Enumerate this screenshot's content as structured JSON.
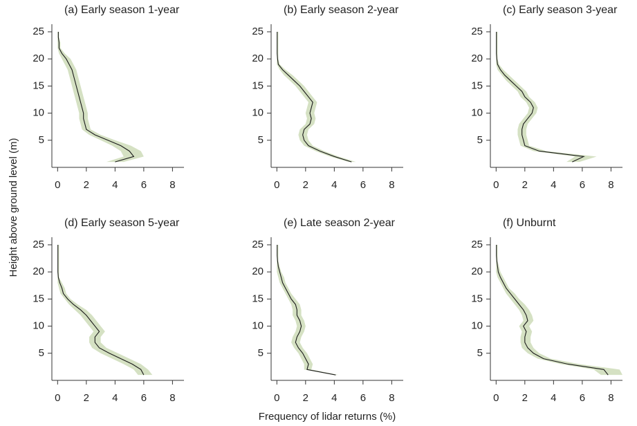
{
  "ylabel": "Height above ground level (m)",
  "xlabel": "Frequency of lidar returns (%)",
  "chart_data": [
    {
      "type": "line",
      "title": "(a)  Early season 1-year",
      "color": "#1a1a1a",
      "band_color": "#d5e1c3",
      "xlim": [
        -0.4,
        8.8
      ],
      "ylim": [
        0,
        26.4
      ],
      "xticks": [
        0,
        2,
        4,
        6,
        8
      ],
      "yticks": [
        5,
        10,
        15,
        20,
        25
      ],
      "y": [
        1,
        2,
        3,
        4,
        5,
        6,
        7,
        8,
        9,
        10,
        11,
        12,
        13,
        14,
        15,
        16,
        17,
        18,
        19,
        20,
        21,
        22,
        23,
        24,
        25
      ],
      "values": [
        4.0,
        5.3,
        5.0,
        4.4,
        3.5,
        2.6,
        2.0,
        1.9,
        1.8,
        1.8,
        1.7,
        1.6,
        1.5,
        1.4,
        1.3,
        1.2,
        1.1,
        1.0,
        0.8,
        0.6,
        0.3,
        0.1,
        0.1,
        0.05,
        0.05
      ],
      "lower": [
        3.4,
        4.6,
        4.4,
        3.8,
        3.0,
        2.2,
        1.7,
        1.6,
        1.5,
        1.5,
        1.4,
        1.3,
        1.2,
        1.1,
        1.0,
        0.9,
        0.8,
        0.7,
        0.5,
        0.3,
        0.1,
        0,
        0,
        0,
        0
      ],
      "upper": [
        4.6,
        6.0,
        5.8,
        5.1,
        4.0,
        3.0,
        2.3,
        2.2,
        2.1,
        2.1,
        2.0,
        1.9,
        1.8,
        1.7,
        1.6,
        1.5,
        1.4,
        1.3,
        1.1,
        0.9,
        0.5,
        0.2,
        0.2,
        0.1,
        0.1
      ]
    },
    {
      "type": "line",
      "title": "(b)  Early season 2-year",
      "color": "#1a1a1a",
      "band_color": "#d5e1c3",
      "xlim": [
        -0.4,
        8.8
      ],
      "ylim": [
        0,
        26.4
      ],
      "xticks": [
        0,
        2,
        4,
        6,
        8
      ],
      "yticks": [
        5,
        10,
        15,
        20,
        25
      ],
      "y": [
        1,
        2,
        3,
        4,
        5,
        6,
        7,
        8,
        9,
        10,
        11,
        12,
        13,
        14,
        15,
        16,
        17,
        18,
        19,
        20,
        21,
        22,
        23,
        24,
        25
      ],
      "values": [
        5.2,
        4.0,
        3.0,
        2.2,
        1.9,
        1.8,
        1.9,
        2.3,
        2.4,
        2.3,
        2.4,
        2.5,
        2.2,
        1.9,
        1.6,
        1.2,
        0.8,
        0.4,
        0.1,
        0.05,
        0.02,
        0.02,
        0.02,
        0.02,
        0.02
      ],
      "lower": [
        5.0,
        3.7,
        2.7,
        1.9,
        1.6,
        1.5,
        1.6,
        2.0,
        2.1,
        2.0,
        2.1,
        2.2,
        1.9,
        1.6,
        1.3,
        0.9,
        0.5,
        0.2,
        0,
        0,
        0,
        0,
        0,
        0,
        0
      ],
      "upper": [
        5.5,
        4.3,
        3.3,
        2.5,
        2.2,
        2.1,
        2.2,
        2.6,
        2.7,
        2.6,
        2.7,
        2.8,
        2.5,
        2.2,
        1.9,
        1.5,
        1.1,
        0.6,
        0.2,
        0.1,
        0.1,
        0.1,
        0.1,
        0.1,
        0.1
      ]
    },
    {
      "type": "line",
      "title": "(c)  Early season 3-year",
      "color": "#1a1a1a",
      "band_color": "#d5e1c3",
      "xlim": [
        -0.4,
        8.8
      ],
      "ylim": [
        0,
        26.4
      ],
      "xticks": [
        0,
        2,
        4,
        6,
        8
      ],
      "yticks": [
        5,
        10,
        15,
        20,
        25
      ],
      "y": [
        1,
        2,
        3,
        4,
        5,
        6,
        7,
        8,
        9,
        10,
        11,
        12,
        13,
        14,
        15,
        16,
        17,
        18,
        19,
        20,
        21,
        22,
        23,
        24,
        25
      ],
      "values": [
        5.3,
        6.1,
        3.0,
        2.0,
        1.9,
        1.8,
        1.8,
        1.9,
        2.2,
        2.5,
        2.6,
        2.4,
        2.0,
        1.8,
        1.4,
        1.0,
        0.6,
        0.3,
        0.1,
        0.05,
        0.02,
        0.02,
        0.02,
        0.02,
        0.02
      ],
      "lower": [
        4.9,
        5.5,
        2.6,
        1.7,
        1.6,
        1.5,
        1.5,
        1.6,
        1.9,
        2.2,
        2.3,
        2.1,
        1.7,
        1.5,
        1.1,
        0.7,
        0.4,
        0.1,
        0,
        0,
        0,
        0,
        0,
        0,
        0
      ],
      "upper": [
        5.8,
        7.0,
        3.5,
        2.3,
        2.2,
        2.1,
        2.1,
        2.2,
        2.5,
        2.8,
        2.9,
        2.7,
        2.3,
        2.1,
        1.7,
        1.3,
        0.9,
        0.5,
        0.2,
        0.1,
        0.1,
        0.1,
        0.1,
        0.1,
        0.1
      ]
    },
    {
      "type": "line",
      "title": "(d)  Early season 5-year",
      "color": "#1a1a1a",
      "band_color": "#d5e1c3",
      "xlim": [
        -0.4,
        8.8
      ],
      "ylim": [
        0,
        26.4
      ],
      "xticks": [
        0,
        2,
        4,
        6,
        8
      ],
      "yticks": [
        5,
        10,
        15,
        20,
        25
      ],
      "y": [
        1,
        2,
        3,
        4,
        5,
        6,
        7,
        8,
        9,
        10,
        11,
        12,
        13,
        14,
        15,
        16,
        17,
        18,
        19,
        20,
        21,
        22,
        23,
        24,
        25
      ],
      "values": [
        6.0,
        5.8,
        5.2,
        4.4,
        3.6,
        2.9,
        2.6,
        2.6,
        2.9,
        2.6,
        2.3,
        2.0,
        1.6,
        1.1,
        0.7,
        0.4,
        0.3,
        0.15,
        0.05,
        0.02,
        0.02,
        0.02,
        0.02,
        0.02,
        0.02
      ],
      "lower": [
        5.6,
        5.3,
        4.6,
        3.8,
        3.0,
        2.4,
        2.2,
        2.2,
        2.5,
        2.2,
        1.9,
        1.6,
        1.2,
        0.8,
        0.5,
        0.2,
        0.1,
        0,
        0,
        0,
        0,
        0,
        0,
        0,
        0
      ],
      "upper": [
        6.6,
        6.3,
        5.8,
        5.0,
        4.2,
        3.4,
        3.0,
        3.0,
        3.3,
        3.0,
        2.7,
        2.4,
        2.0,
        1.4,
        0.9,
        0.6,
        0.5,
        0.3,
        0.1,
        0.1,
        0.1,
        0.1,
        0.1,
        0.1,
        0.1
      ]
    },
    {
      "type": "line",
      "title": "(e)  Late season 2-year",
      "color": "#1a1a1a",
      "band_color": "#d5e1c3",
      "xlim": [
        -0.4,
        8.8
      ],
      "ylim": [
        0,
        26.4
      ],
      "xticks": [
        0,
        2,
        4,
        6,
        8
      ],
      "yticks": [
        5,
        10,
        15,
        20,
        25
      ],
      "y": [
        1,
        2,
        3,
        4,
        5,
        6,
        7,
        8,
        9,
        10,
        11,
        12,
        13,
        14,
        15,
        16,
        17,
        18,
        19,
        20,
        21,
        22,
        23,
        24,
        25
      ],
      "values": [
        4.1,
        2.1,
        2.2,
        2.0,
        1.8,
        1.5,
        1.3,
        1.4,
        1.6,
        1.7,
        1.6,
        1.4,
        1.4,
        1.3,
        1.0,
        0.8,
        0.6,
        0.4,
        0.3,
        0.2,
        0.1,
        0.05,
        0.02,
        0.02,
        0.02
      ],
      "lower": [
        4.0,
        1.9,
        1.9,
        1.7,
        1.5,
        1.2,
        1.0,
        1.1,
        1.3,
        1.4,
        1.3,
        1.1,
        1.1,
        1.0,
        0.8,
        0.6,
        0.4,
        0.2,
        0.1,
        0,
        0,
        0,
        0,
        0,
        0
      ],
      "upper": [
        4.3,
        2.4,
        2.5,
        2.3,
        2.1,
        1.8,
        1.6,
        1.7,
        1.9,
        2.0,
        1.9,
        1.7,
        1.7,
        1.6,
        1.3,
        1.0,
        0.8,
        0.6,
        0.5,
        0.3,
        0.2,
        0.1,
        0.1,
        0.1,
        0.1
      ]
    },
    {
      "type": "line",
      "title": "(f)   Unburnt",
      "color": "#1a1a1a",
      "band_color": "#d5e1c3",
      "xlim": [
        -0.4,
        8.8
      ],
      "ylim": [
        0,
        26.4
      ],
      "xticks": [
        0,
        2,
        4,
        6,
        8
      ],
      "yticks": [
        5,
        10,
        15,
        20,
        25
      ],
      "y": [
        1,
        2,
        3,
        4,
        5,
        6,
        7,
        8,
        9,
        10,
        11,
        12,
        13,
        14,
        15,
        16,
        17,
        18,
        19,
        20,
        21,
        22,
        23,
        24,
        25
      ],
      "values": [
        7.8,
        7.5,
        5.0,
        3.3,
        2.6,
        2.2,
        2.0,
        2.0,
        2.1,
        1.9,
        2.2,
        2.1,
        1.9,
        1.6,
        1.3,
        1.0,
        0.7,
        0.5,
        0.3,
        0.15,
        0.1,
        0.05,
        0.02,
        0.02,
        0.02
      ],
      "lower": [
        7.3,
        6.8,
        4.5,
        2.9,
        2.2,
        1.8,
        1.7,
        1.7,
        1.8,
        1.6,
        1.9,
        1.8,
        1.6,
        1.3,
        1.0,
        0.7,
        0.5,
        0.3,
        0.1,
        0,
        0,
        0,
        0,
        0,
        0
      ],
      "upper": [
        8.8,
        8.6,
        5.8,
        3.8,
        3.0,
        2.6,
        2.4,
        2.4,
        2.5,
        2.3,
        2.6,
        2.5,
        2.3,
        2.0,
        1.6,
        1.3,
        0.9,
        0.7,
        0.5,
        0.3,
        0.2,
        0.1,
        0.1,
        0.1,
        0.1
      ]
    }
  ]
}
